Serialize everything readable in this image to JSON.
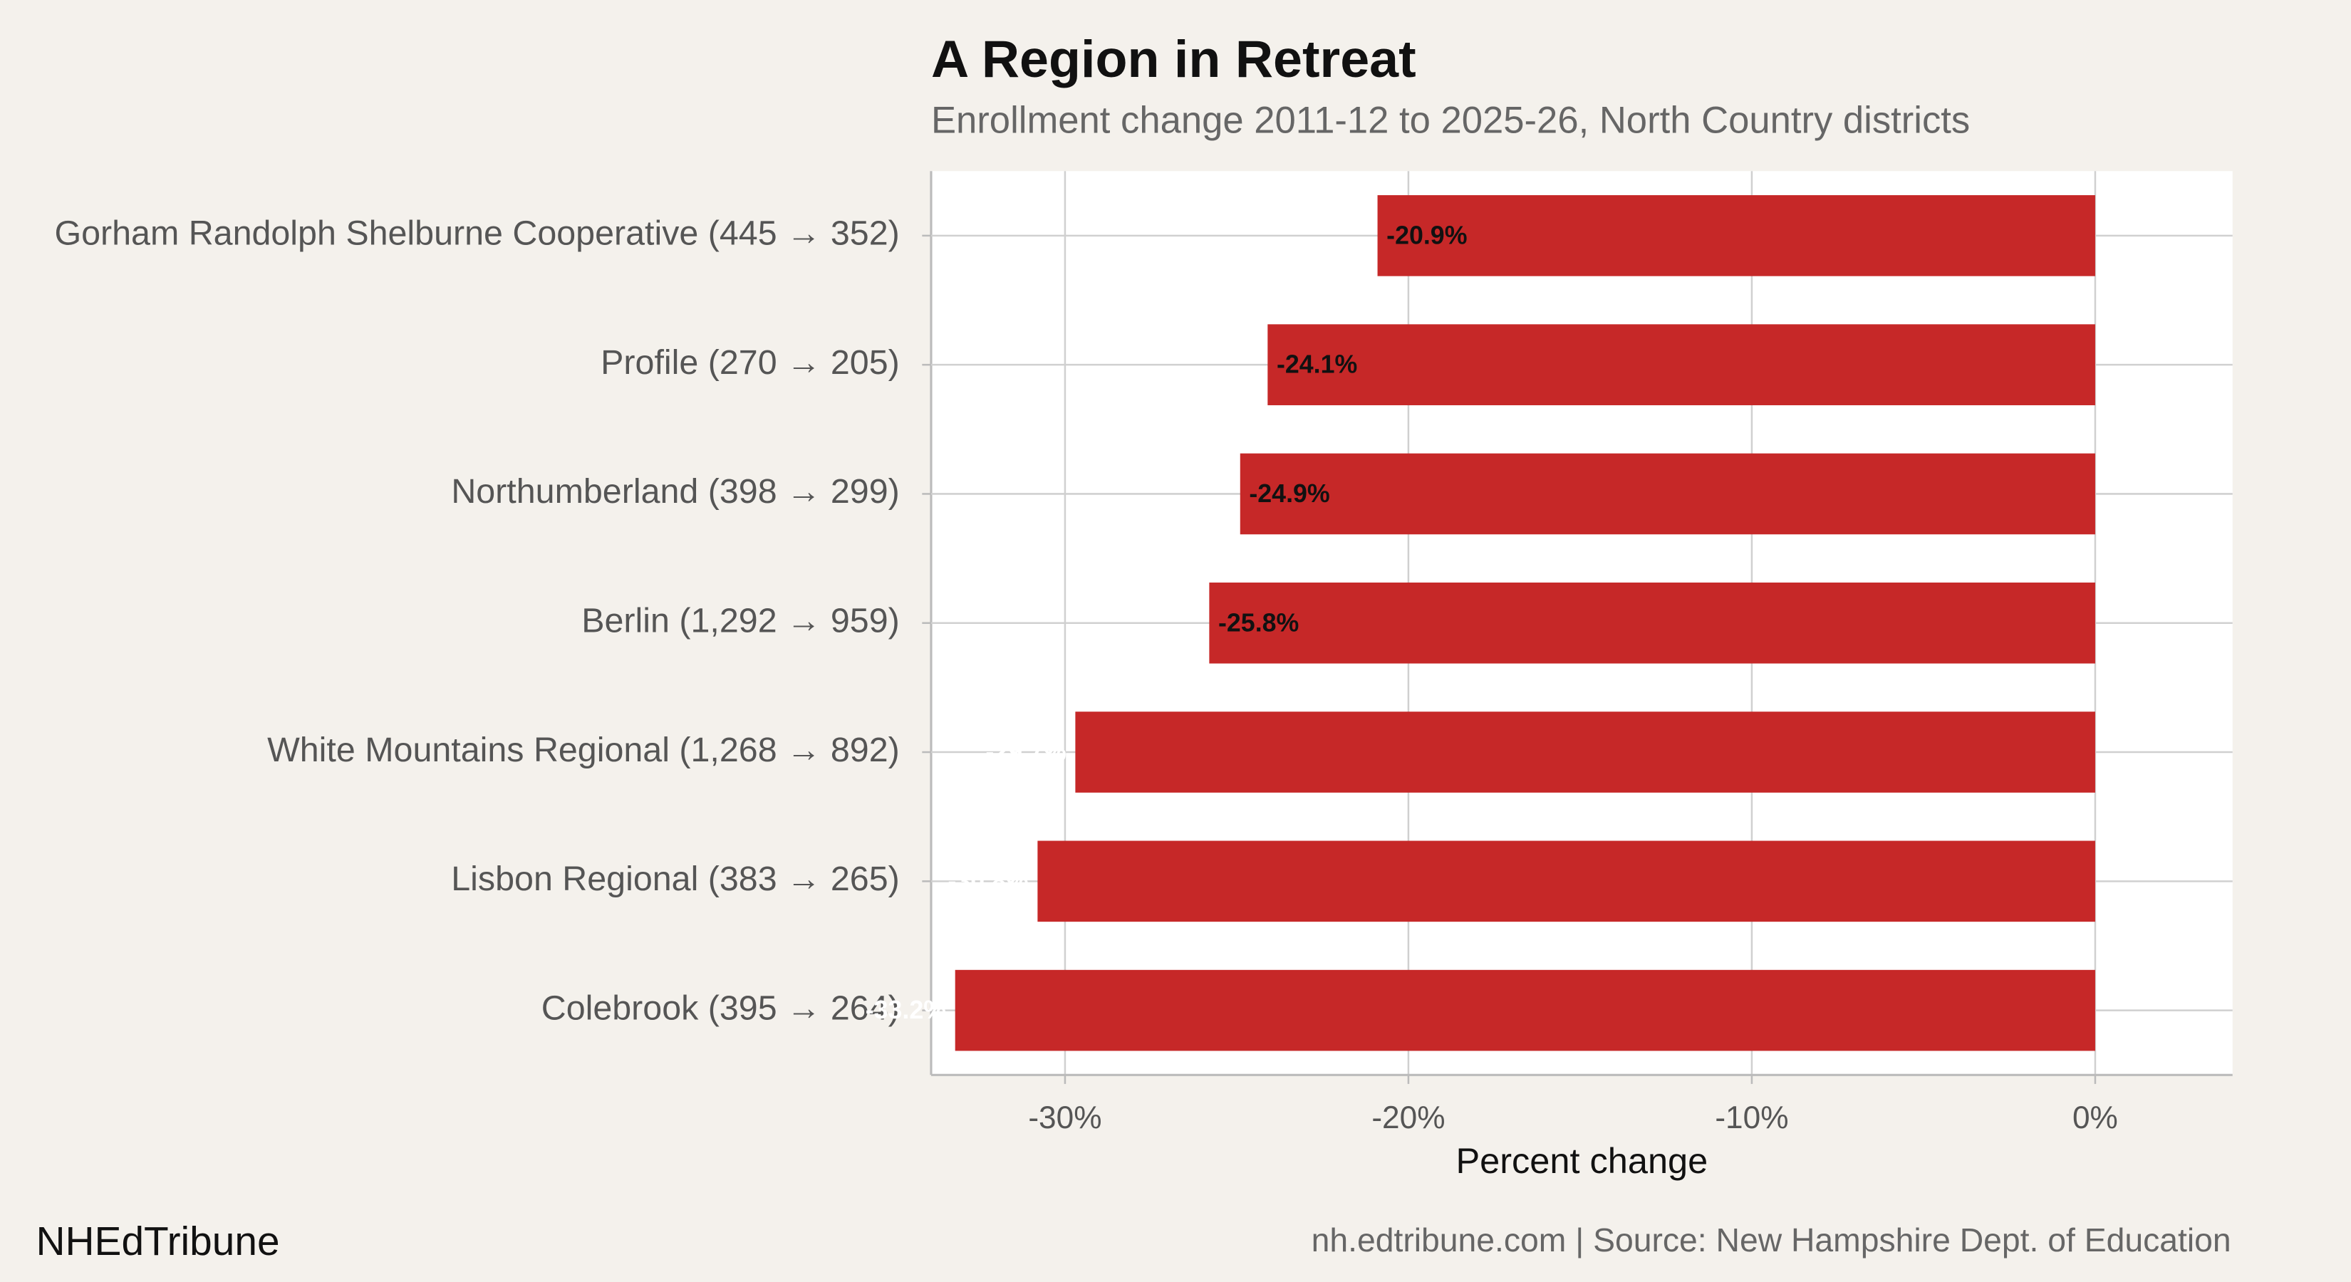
{
  "chart_data": {
    "type": "bar",
    "orientation": "horizontal",
    "title": "A Region in Retreat",
    "subtitle": "Enrollment change 2011-12 to 2025-26, North Country districts",
    "categories": [
      "Gorham Randolph Shelburne Cooperative (445 → 352)",
      "Profile (270 → 205)",
      "Northumberland (398 → 299)",
      "Berlin (1,292 → 959)",
      "White Mountains Regional (1,268 → 892)",
      "Lisbon Regional (383 → 265)",
      "Colebrook (395 → 264)"
    ],
    "values": [
      -20.9,
      -24.1,
      -24.9,
      -25.8,
      -29.7,
      -30.8,
      -33.2
    ],
    "value_labels": [
      "-20.9%",
      "-24.1%",
      "-24.9%",
      "-25.8%",
      "-29.7%",
      "-30.8%",
      "-33.2%"
    ],
    "color": "#c62828",
    "x_label": "Percent change",
    "xlim": [
      -33.9,
      4.0
    ],
    "xticks": [
      {
        "value": -30,
        "label": "-30%"
      },
      {
        "value": -20,
        "label": "-20%"
      },
      {
        "value": -10,
        "label": "-10%"
      },
      {
        "value": 0,
        "label": "0%"
      }
    ],
    "grid": true,
    "brand": "NHEdTribune",
    "source": "nh.edtribune.com | Source: New Hampshire Dept. of Education"
  }
}
